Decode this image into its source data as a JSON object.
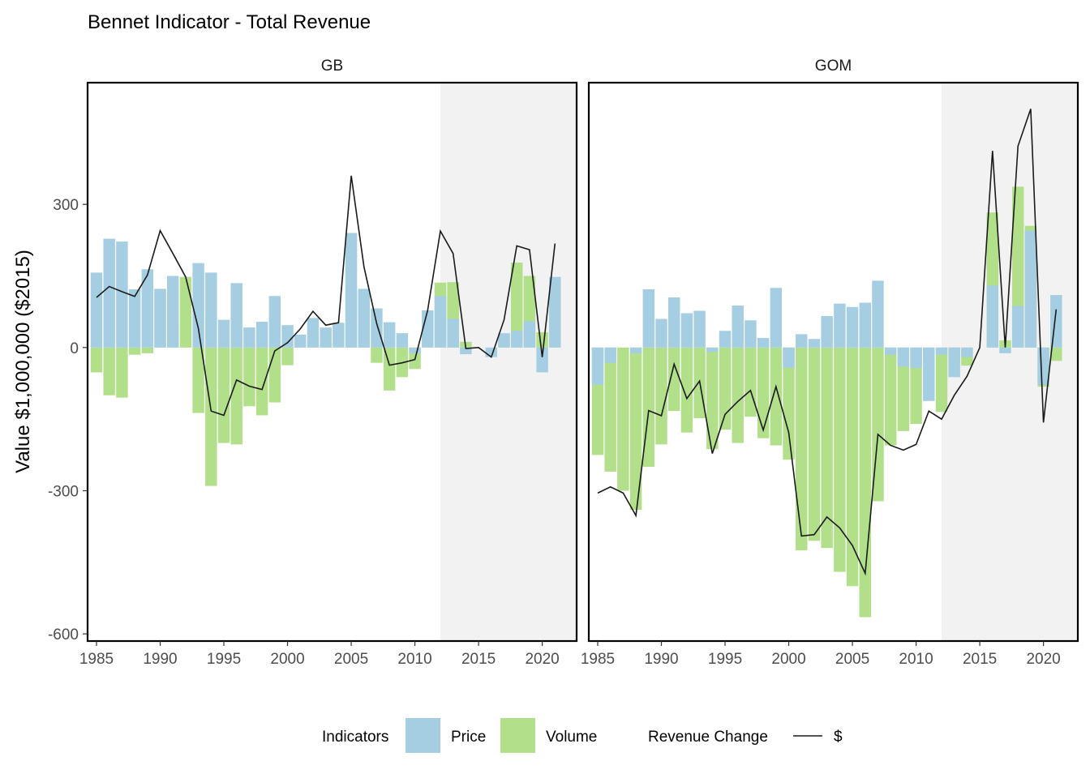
{
  "chart_data": {
    "type": "bar",
    "title": "Bennet Indicator - Total Revenue",
    "ylabel": "Value $1,000,000 ($2015)",
    "xlabel": "",
    "xlim": [
      1984.3,
      2022.7
    ],
    "ylim": [
      -615,
      555
    ],
    "xticks": [
      1985,
      1990,
      1995,
      2000,
      2005,
      2010,
      2015,
      2020
    ],
    "yticks": [
      -600,
      -300,
      0,
      300
    ],
    "shaded_region": {
      "from": 2012,
      "to": 2022.7,
      "color": "#f2f2f2"
    },
    "colors": {
      "price": "#a6cee3",
      "volume": "#b2df8a",
      "line": "#1a1a1a"
    },
    "legend": {
      "placement": "bottom",
      "fill_title": "Indicators",
      "line_title": "Revenue Change",
      "items": [
        {
          "key": "price",
          "label": "Price"
        },
        {
          "key": "volume",
          "label": "Volume"
        },
        {
          "key": "line",
          "label": "$"
        }
      ]
    },
    "panels": [
      {
        "name": "GB",
        "x": [
          1985,
          1986,
          1987,
          1988,
          1989,
          1990,
          1991,
          1992,
          1993,
          1994,
          1995,
          1996,
          1997,
          1998,
          1999,
          2000,
          2001,
          2002,
          2003,
          2004,
          2005,
          2006,
          2007,
          2008,
          2009,
          2010,
          2011,
          2012,
          2013,
          2014,
          2015,
          2016,
          2017,
          2018,
          2019,
          2020,
          2021
        ],
        "price": [
          157,
          228,
          222,
          122,
          164,
          123,
          150,
          0,
          177,
          157,
          58,
          135,
          42,
          54,
          108,
          47,
          27,
          62,
          42,
          52,
          240,
          123,
          82,
          53,
          30,
          -12,
          78,
          108,
          60,
          -14,
          0,
          -20,
          30,
          35,
          55,
          -52,
          148
        ],
        "volume": [
          -52,
          -100,
          -105,
          -15,
          -12,
          122,
          47,
          148,
          -137,
          -290,
          -200,
          -203,
          -123,
          -142,
          -115,
          -37,
          12,
          14,
          5,
          0,
          120,
          46,
          -32,
          -90,
          -62,
          -45,
          0,
          136,
          137,
          12,
          0,
          0,
          28,
          178,
          150,
          32,
          70
        ],
        "revenue": [
          105,
          128,
          117,
          107,
          152,
          245,
          197,
          148,
          40,
          -133,
          -142,
          -68,
          -81,
          -88,
          -7,
          10,
          39,
          76,
          47,
          52,
          360,
          169,
          50,
          -37,
          -32,
          -25,
          78,
          244,
          197,
          -2,
          0,
          -20,
          58,
          213,
          205,
          -20,
          218
        ]
      },
      {
        "name": "GOM",
        "x": [
          1985,
          1986,
          1987,
          1988,
          1989,
          1990,
          1991,
          1992,
          1993,
          1994,
          1995,
          1996,
          1997,
          1998,
          1999,
          2000,
          2001,
          2002,
          2003,
          2004,
          2005,
          2006,
          2007,
          2008,
          2009,
          2010,
          2011,
          2012,
          2013,
          2014,
          2015,
          2016,
          2017,
          2018,
          2019,
          2020,
          2021
        ],
        "price": [
          -78,
          -32,
          0,
          -12,
          122,
          60,
          105,
          72,
          77,
          -9,
          35,
          88,
          57,
          20,
          125,
          -42,
          28,
          18,
          66,
          92,
          85,
          94,
          140,
          -15,
          -40,
          -43,
          -112,
          -15,
          -62,
          -20,
          0,
          130,
          -12,
          87,
          245,
          -78,
          110
        ],
        "volume": [
          -225,
          -260,
          -300,
          -340,
          -250,
          -203,
          -133,
          -178,
          -148,
          -213,
          -172,
          -200,
          -145,
          -190,
          -205,
          -235,
          -425,
          -405,
          -420,
          -470,
          -500,
          -565,
          -322,
          -205,
          -175,
          -160,
          -20,
          -135,
          -35,
          -38,
          0,
          283,
          15,
          337,
          255,
          -82,
          -28
        ],
        "revenue": [
          -305,
          -292,
          -305,
          -352,
          -132,
          -143,
          -35,
          -107,
          -70,
          -222,
          -140,
          -113,
          -90,
          -173,
          -82,
          -178,
          -395,
          -392,
          -355,
          -378,
          -415,
          -473,
          -182,
          -205,
          -215,
          -203,
          -133,
          -150,
          -100,
          -60,
          0,
          412,
          0,
          422,
          500,
          -157,
          80
        ]
      }
    ]
  }
}
